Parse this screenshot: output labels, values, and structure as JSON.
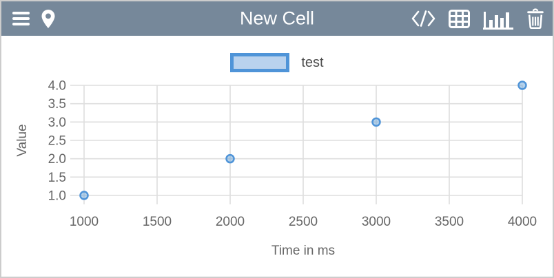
{
  "header": {
    "title": "New Cell",
    "bg_color": "#76889A",
    "left_icons": [
      "menu-icon",
      "location-pin-icon"
    ],
    "right_icons": [
      "code-icon",
      "table-icon",
      "bar-chart-icon",
      "trash-icon"
    ]
  },
  "legend": {
    "label": "test",
    "swatch_border_color": "#4F94D8",
    "swatch_fill_color": "#B9D2EE"
  },
  "chart_data": {
    "type": "scatter",
    "title": "",
    "xlabel": "Time in ms",
    "ylabel": "Value",
    "series": [
      {
        "name": "test",
        "x": [
          1000,
          2000,
          3000,
          4000
        ],
        "y": [
          1.0,
          2.0,
          3.0,
          4.0
        ]
      }
    ],
    "xlim": [
      1000,
      4000
    ],
    "ylim": [
      1.0,
      4.0
    ],
    "xticks": [
      1000,
      1500,
      2000,
      2500,
      3000,
      3500,
      4000
    ],
    "yticks": [
      1.0,
      1.5,
      2.0,
      2.5,
      3.0,
      3.5,
      4.0
    ],
    "grid": true,
    "legend_position": "top-center",
    "marker_stroke_color": "#4F94D8",
    "marker_fill_color": "#5B9BD5",
    "grid_color": "#dedede",
    "tick_color": "#666666"
  }
}
